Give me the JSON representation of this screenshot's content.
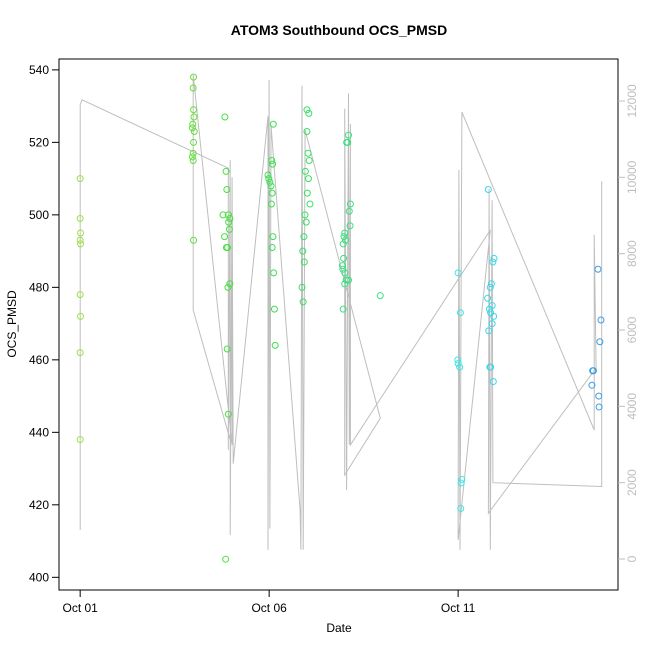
{
  "chart_data": {
    "type": "scatter",
    "title": "ATOM3 Southbound OCS_PMSD",
    "x_label": "Date",
    "y_label": "OCS_PMSD",
    "xlim": [
      -0.56,
      14.23
    ],
    "xticks": [
      {
        "value": 0,
        "label": "Oct 01"
      },
      {
        "value": 5,
        "label": "Oct 06"
      },
      {
        "value": 10,
        "label": "Oct 11"
      }
    ],
    "ylim": [
      396.5,
      543
    ],
    "yticks": [
      400,
      420,
      440,
      460,
      480,
      500,
      520,
      540
    ],
    "y2lim": [
      -812,
      13100
    ],
    "y2ticks": [
      0,
      2000,
      4000,
      6000,
      8000,
      10000,
      12000
    ],
    "y2_color": "#bebebe",
    "series": [
      {
        "type": "scatter",
        "color": "#9ee04a",
        "x": [
          0,
          0,
          0.01,
          0,
          0.01,
          0,
          0.01,
          0,
          0
        ],
        "values": [
          510,
          499,
          495,
          493,
          492,
          478,
          472,
          462,
          438
        ]
      },
      {
        "type": "scatter",
        "color": "#66e03c",
        "x": [
          3.0,
          2.99,
          3.0,
          3.01,
          2.98,
          2.97,
          3.02,
          3.0,
          2.99,
          2.97,
          2.99,
          3.0
        ],
        "values": [
          538,
          535,
          529,
          527,
          525,
          524,
          523,
          520,
          517,
          516,
          515,
          493
        ]
      },
      {
        "type": "scatter",
        "color": "#48e040",
        "x": [
          3.83,
          3.86,
          3.88,
          3.78,
          3.92,
          3.96,
          3.93,
          3.95,
          3.82,
          3.87,
          3.9,
          3.96,
          3.91,
          3.89,
          3.92,
          3.85
        ],
        "values": [
          527,
          512,
          507,
          500,
          500,
          499,
          498,
          496,
          494,
          491,
          491,
          481,
          480,
          463,
          445,
          405
        ]
      },
      {
        "type": "scatter",
        "color": "#3ce050",
        "x": [
          5.11,
          5.07,
          5.09,
          4.97,
          4.99,
          5.02,
          5.05,
          5.08,
          5.06,
          5.1,
          5.08,
          5.12,
          5.14,
          5.16
        ],
        "values": [
          525,
          515,
          514,
          511,
          510,
          509,
          508,
          506,
          503,
          494,
          491,
          484,
          474,
          464
        ]
      },
      {
        "type": "scatter",
        "color": "#3ae064",
        "x": [
          6.0,
          6.05,
          6.0,
          6.03,
          6.06,
          5.96,
          6.04,
          6.01,
          6.08,
          5.95,
          5.98,
          5.92,
          5.89,
          5.93,
          5.87,
          5.9
        ],
        "values": [
          529,
          528,
          523,
          517,
          515,
          512,
          510,
          506,
          503,
          500,
          498,
          494,
          490,
          487,
          480,
          476
        ]
      },
      {
        "type": "scatter",
        "color": "#3ae080",
        "x": [
          7.1,
          7.05,
          7.08,
          7.15,
          7.12,
          7.14,
          7.0,
          6.98,
          7.02,
          6.96,
          6.97,
          6.94,
          6.95,
          7.0,
          7.04,
          7.1,
          7.0,
          6.96,
          7.94
        ],
        "values": [
          522,
          520,
          520,
          503,
          501,
          497,
          495,
          494,
          493,
          492,
          488,
          486,
          485,
          484,
          482,
          482,
          481,
          474,
          477.7
        ]
      },
      {
        "type": "scatter",
        "color": "#3ce6e6",
        "x": [
          10.0,
          10.06,
          9.99,
          10.0,
          10.04,
          10.1,
          10.08,
          10.07
        ],
        "values": [
          484,
          473,
          460,
          459,
          458,
          427,
          426,
          419
        ]
      },
      {
        "type": "scatter",
        "color": "#3cd6ea",
        "x": [
          10.8,
          10.95,
          10.92,
          10.88,
          10.85,
          10.78,
          10.9,
          10.83,
          10.86,
          10.94,
          10.9,
          10.81,
          10.84,
          10.86,
          10.93
        ],
        "values": [
          507,
          488,
          487,
          481,
          480,
          477,
          475,
          474,
          473,
          472,
          470,
          468,
          458,
          458,
          454
        ]
      },
      {
        "type": "scatter",
        "color": "#3a9ee2",
        "x": [
          13.7,
          13.78,
          13.75,
          13.56,
          13.58,
          13.54,
          13.72,
          13.73
        ],
        "values": [
          485,
          471,
          465,
          457,
          457,
          453,
          450,
          447
        ]
      },
      {
        "type": "line",
        "axis": "y2",
        "color": "#bebebe",
        "x": [
          0,
          0,
          0.05,
          3.92,
          3.92,
          3.97,
          3.97,
          4.02,
          4.02,
          2.99,
          2.99,
          3.97,
          3.97,
          4.02,
          4.05,
          4.97,
          4.97,
          5.0,
          5.02,
          5.05,
          5.82,
          5.84,
          5.87,
          5.9,
          5.95,
          7.94,
          7.0,
          7.0,
          7.05,
          7.1,
          7.12,
          7.15,
          7.15,
          10.85,
          10.0,
          10.02,
          10.05,
          10.1,
          13.6,
          13.6,
          13.65,
          10.8,
          10.82,
          10.85,
          10.9,
          10.92,
          13.8,
          13.8
        ],
        "values": [
          760,
          11900,
          12030,
          10240,
          2860,
          10450,
          630,
          10000,
          2990,
          12680,
          6520,
          3120,
          1200,
          9800,
          2500,
          11600,
          240,
          12550,
          800,
          11370,
          1280,
          240,
          12400,
          240,
          11240,
          3690,
          2200,
          11800,
          1800,
          12200,
          3000,
          11400,
          2990,
          8620,
          500,
          10200,
          240,
          11710,
          3380,
          8500,
          5000,
          1200,
          9700,
          240,
          9400,
          2000,
          1900,
          9900
        ]
      }
    ]
  }
}
